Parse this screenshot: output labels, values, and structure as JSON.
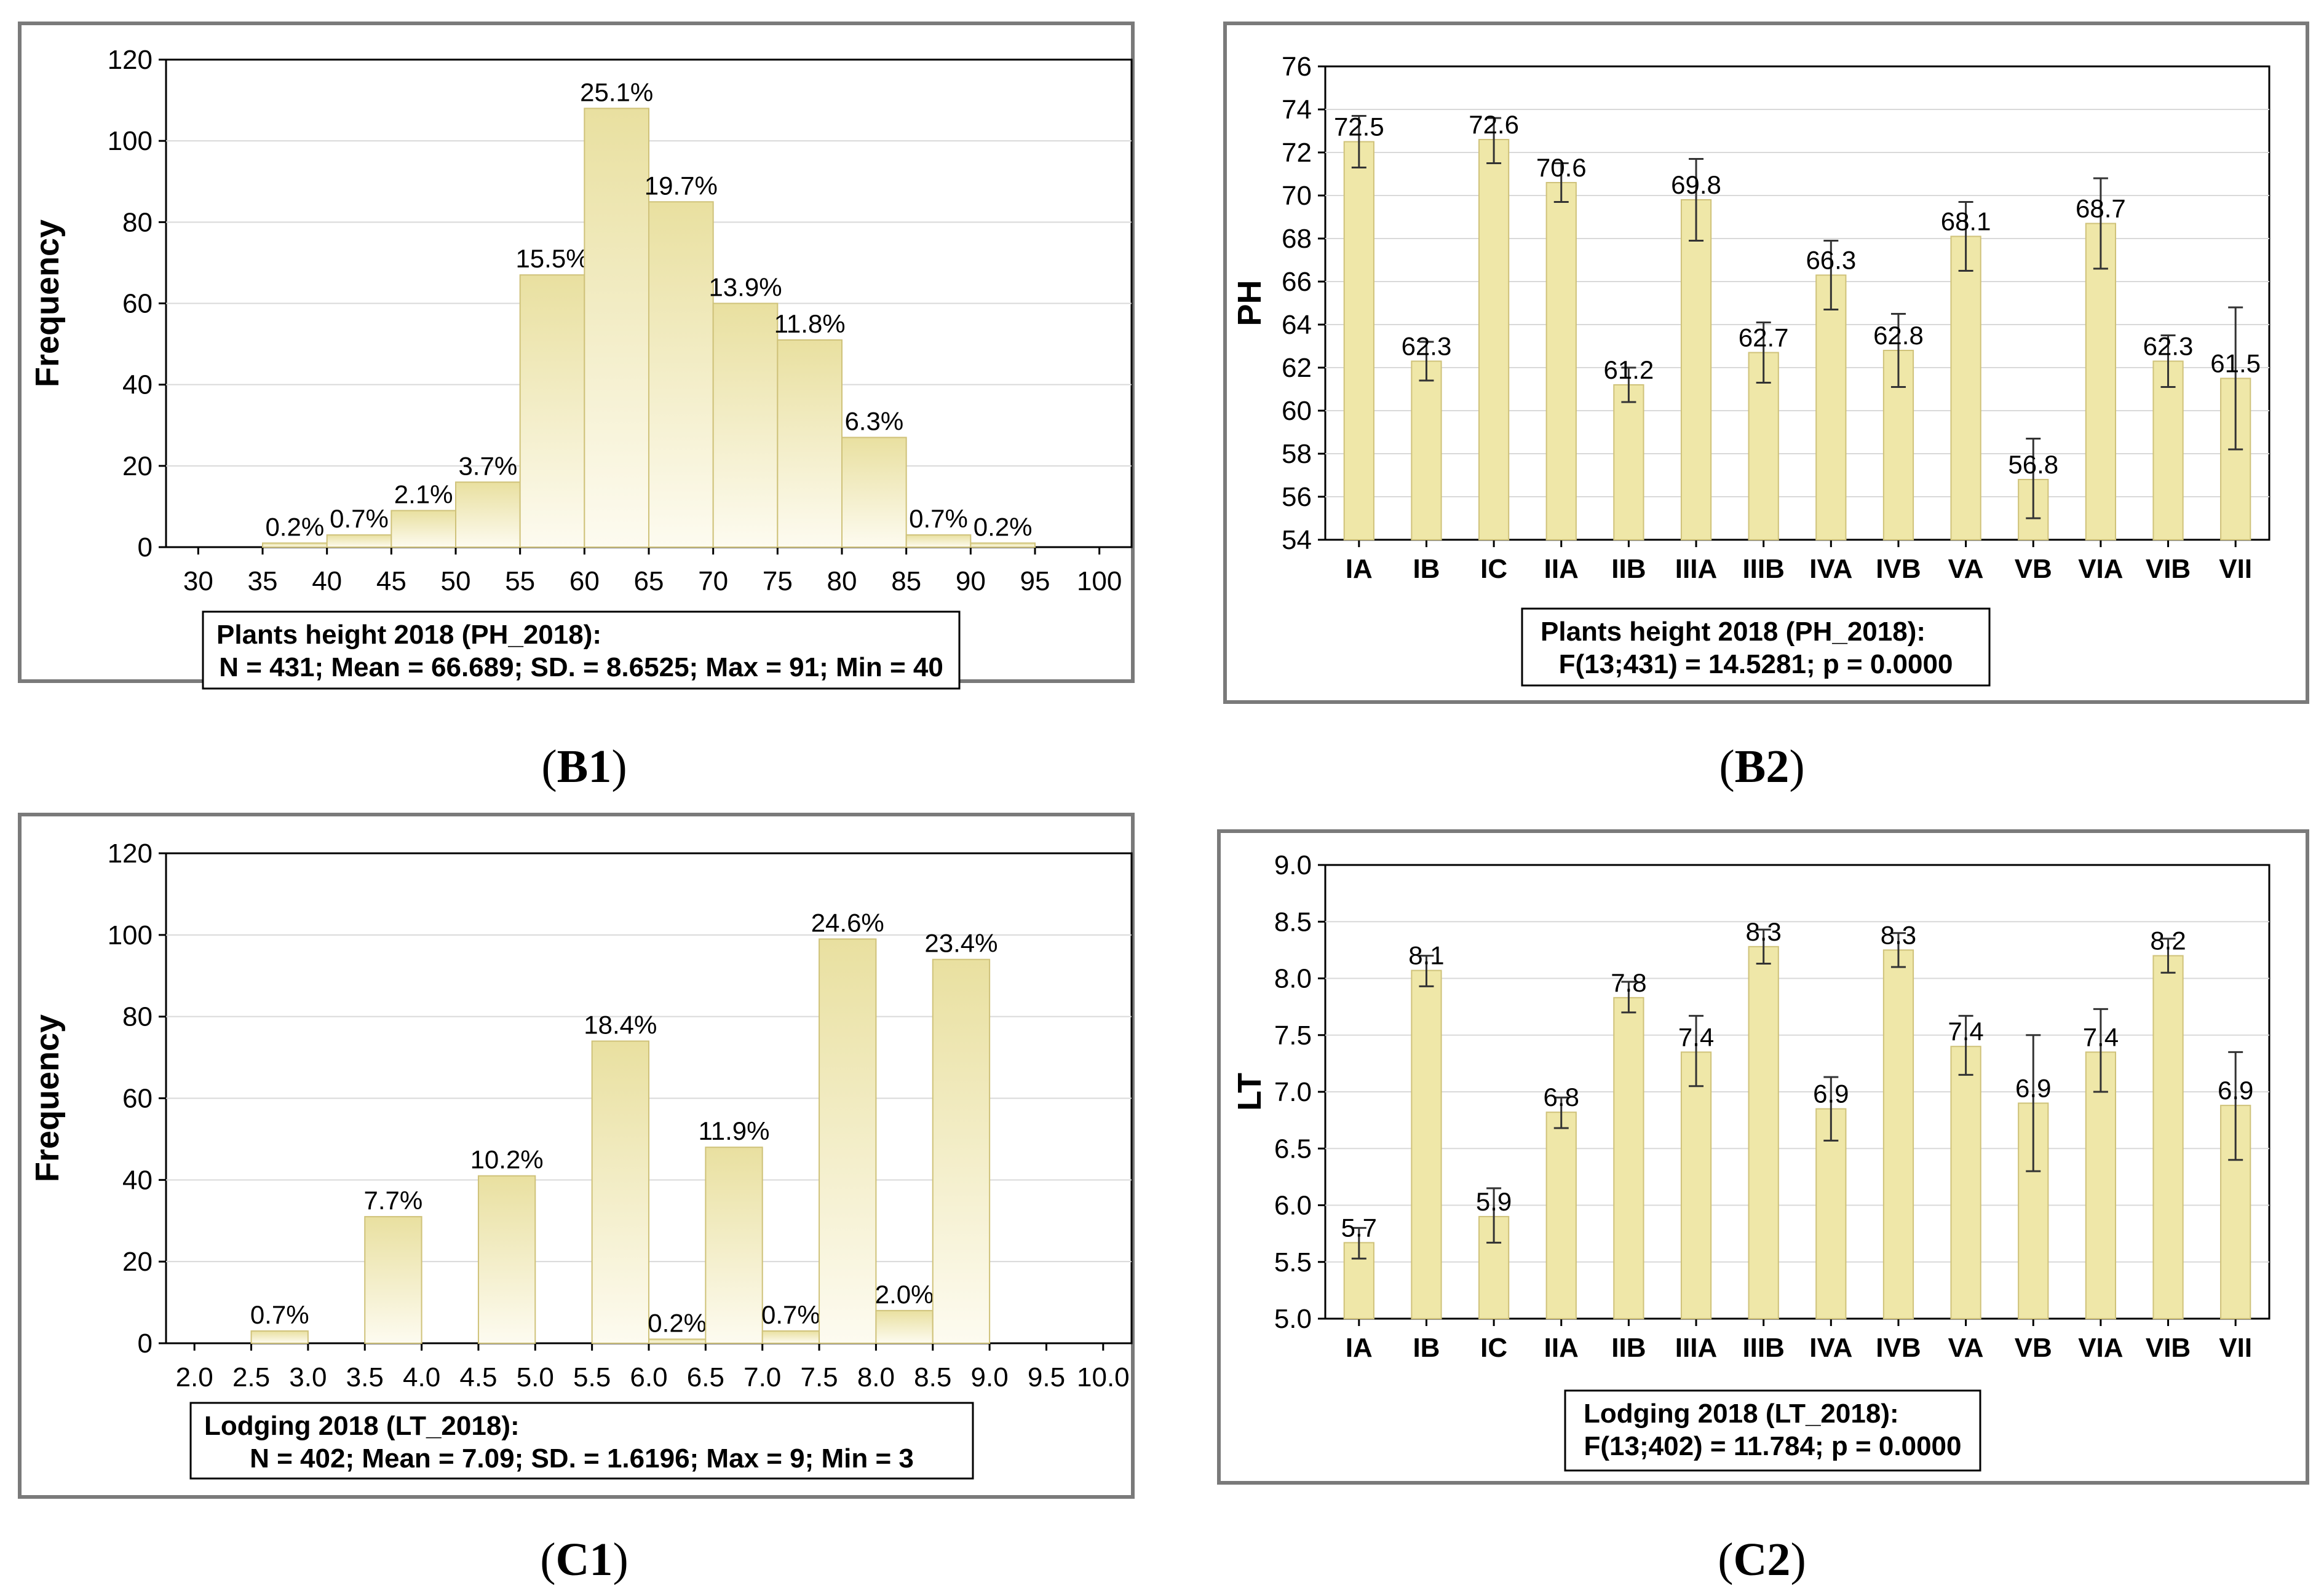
{
  "figure": {
    "panel_labels": [
      {
        "open": "(",
        "bold": "B1",
        "close": ")"
      },
      {
        "open": "(",
        "bold": "B2",
        "close": ")"
      },
      {
        "open": "(",
        "bold": "C1",
        "close": ")"
      },
      {
        "open": "(",
        "bold": "C2",
        "close": ")"
      }
    ]
  },
  "colors": {
    "bar": "#efe7a8",
    "bar_light": "#fbf8e6",
    "bar_stroke": "#cfc27a",
    "frame": "#7a7a7a",
    "grid": "#d9d9d9"
  },
  "chart_data": [
    {
      "type": "bar",
      "id": "B1",
      "title": "",
      "ylabel": "Frequency",
      "xlabel": "",
      "ylim": [
        0,
        120
      ],
      "yticks": [
        0,
        20,
        40,
        60,
        80,
        100,
        120
      ],
      "xlim": [
        27.5,
        102.5
      ],
      "xticks": [
        "30",
        "35",
        "40",
        "45",
        "50",
        "55",
        "60",
        "65",
        "70",
        "75",
        "80",
        "85",
        "90",
        "95",
        "100"
      ],
      "bins": [
        {
          "x0": 35,
          "x1": 40,
          "value": 1,
          "label": "0.2%"
        },
        {
          "x0": 40,
          "x1": 45,
          "value": 3,
          "label": "0.7%"
        },
        {
          "x0": 45,
          "x1": 50,
          "value": 9,
          "label": "2.1%"
        },
        {
          "x0": 50,
          "x1": 55,
          "value": 16,
          "label": "3.7%"
        },
        {
          "x0": 55,
          "x1": 60,
          "value": 67,
          "label": "15.5%"
        },
        {
          "x0": 60,
          "x1": 65,
          "value": 108,
          "label": "25.1%"
        },
        {
          "x0": 65,
          "x1": 70,
          "value": 85,
          "label": "19.7%"
        },
        {
          "x0": 70,
          "x1": 75,
          "value": 60,
          "label": "13.9%"
        },
        {
          "x0": 75,
          "x1": 80,
          "value": 51,
          "label": "11.8%"
        },
        {
          "x0": 80,
          "x1": 85,
          "value": 27,
          "label": "6.3%"
        },
        {
          "x0": 85,
          "x1": 90,
          "value": 3,
          "label": "0.7%"
        },
        {
          "x0": 90,
          "x1": 95,
          "value": 1,
          "label": "0.2%"
        }
      ],
      "legend": {
        "line1": "Plants height 2018 (PH_2018):",
        "line2": "N = 431; Mean = 66.689; SD. = 8.6525; Max = 91; Min = 40"
      }
    },
    {
      "type": "bar",
      "id": "B2",
      "title": "",
      "ylabel": "PH",
      "xlabel": "",
      "ylim": [
        54,
        76
      ],
      "yticks": [
        54,
        56,
        58,
        60,
        62,
        64,
        66,
        68,
        70,
        72,
        74,
        76
      ],
      "categories": [
        "IA",
        "IB",
        "IC",
        "IIA",
        "IIB",
        "IIIA",
        "IIIB",
        "IVA",
        "IVB",
        "VA",
        "VB",
        "VIA",
        "VIB",
        "VII"
      ],
      "values": [
        72.5,
        62.3,
        72.6,
        70.6,
        61.2,
        69.8,
        62.7,
        66.3,
        62.8,
        68.1,
        56.8,
        68.7,
        62.3,
        61.5
      ],
      "value_labels": [
        "72.5",
        "62.3",
        "72.6",
        "70.6",
        "61.2",
        "69.8",
        "62.7",
        "66.3",
        "62.8",
        "68.1",
        "56.8",
        "68.7",
        "62.3",
        "61.5"
      ],
      "err_low": [
        71.3,
        61.4,
        71.5,
        69.7,
        60.4,
        67.9,
        61.3,
        64.7,
        61.1,
        66.5,
        55.0,
        66.6,
        61.1,
        58.2
      ],
      "err_high": [
        73.7,
        63.2,
        73.6,
        71.5,
        62.0,
        71.7,
        64.1,
        67.9,
        64.5,
        69.7,
        58.7,
        70.8,
        63.5,
        64.8
      ],
      "legend": {
        "line1": "Plants height 2018 (PH_2018):",
        "line2": "F(13;431) = 14.5281; p = 0.0000"
      }
    },
    {
      "type": "bar",
      "id": "C1",
      "title": "",
      "ylabel": "Frequency",
      "xlabel": "",
      "ylim": [
        0,
        120
      ],
      "yticks": [
        0,
        20,
        40,
        60,
        80,
        100,
        120
      ],
      "xlim": [
        1.75,
        10.25
      ],
      "xticks": [
        "2.0",
        "2.5",
        "3.0",
        "3.5",
        "4.0",
        "4.5",
        "5.0",
        "5.5",
        "6.0",
        "6.5",
        "7.0",
        "7.5",
        "8.0",
        "8.5",
        "9.0",
        "9.5",
        "10.0"
      ],
      "bins": [
        {
          "x0": 2.5,
          "x1": 3.0,
          "value": 3,
          "label": "0.7%"
        },
        {
          "x0": 3.5,
          "x1": 4.0,
          "value": 31,
          "label": "7.7%"
        },
        {
          "x0": 4.5,
          "x1": 5.0,
          "value": 41,
          "label": "10.2%"
        },
        {
          "x0": 5.5,
          "x1": 6.0,
          "value": 74,
          "label": "18.4%"
        },
        {
          "x0": 6.0,
          "x1": 6.5,
          "value": 1,
          "label": "0.2%"
        },
        {
          "x0": 6.5,
          "x1": 7.0,
          "value": 48,
          "label": "11.9%"
        },
        {
          "x0": 7.0,
          "x1": 7.5,
          "value": 3,
          "label": "0.7%"
        },
        {
          "x0": 7.5,
          "x1": 8.0,
          "value": 99,
          "label": "24.6%"
        },
        {
          "x0": 8.0,
          "x1": 8.5,
          "value": 8,
          "label": "2.0%"
        },
        {
          "x0": 8.5,
          "x1": 9.0,
          "value": 94,
          "label": "23.4%"
        }
      ],
      "legend": {
        "line1": "Lodging 2018 (LT_2018):",
        "line2": "N = 402; Mean = 7.09; SD. = 1.6196; Max = 9; Min = 3"
      }
    },
    {
      "type": "bar",
      "id": "C2",
      "title": "",
      "ylabel": "LT",
      "xlabel": "",
      "ylim": [
        5.0,
        9.0
      ],
      "yticks": [
        "5.0",
        "5.5",
        "6.0",
        "6.5",
        "7.0",
        "7.5",
        "8.0",
        "8.5",
        "9.0"
      ],
      "categories": [
        "IA",
        "IB",
        "IC",
        "IIA",
        "IIB",
        "IIIA",
        "IIIB",
        "IVA",
        "IVB",
        "VA",
        "VB",
        "VIA",
        "VIB",
        "VII"
      ],
      "values": [
        5.67,
        8.07,
        5.9,
        6.82,
        7.83,
        7.35,
        8.28,
        6.85,
        8.25,
        7.4,
        6.9,
        7.35,
        8.2,
        6.88
      ],
      "value_labels": [
        "5.7",
        "8.1",
        "5.9",
        "6.8",
        "7.8",
        "7.4",
        "8.3",
        "6.9",
        "8.3",
        "7.4",
        "6.9",
        "7.4",
        "8.2",
        "6.9"
      ],
      "err_low": [
        5.53,
        7.93,
        5.67,
        6.68,
        7.7,
        7.05,
        8.13,
        6.57,
        8.1,
        7.15,
        6.3,
        7.0,
        8.05,
        6.4
      ],
      "err_high": [
        5.8,
        8.2,
        6.15,
        6.95,
        7.97,
        7.67,
        8.43,
        7.13,
        8.4,
        7.67,
        7.5,
        7.73,
        8.35,
        7.35
      ],
      "legend": {
        "line1": "Lodging 2018 (LT_2018):",
        "line2": "F(13;402) = 11.784; p = 0.0000"
      }
    }
  ]
}
